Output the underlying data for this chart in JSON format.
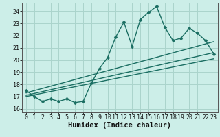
{
  "xlabel": "Humidex (Indice chaleur)",
  "bg_color": "#cceee8",
  "grid_color": "#aad4cc",
  "line_color": "#1a6e62",
  "xlim": [
    -0.5,
    23.5
  ],
  "ylim": [
    15.7,
    24.7
  ],
  "xticks": [
    0,
    1,
    2,
    3,
    4,
    5,
    6,
    7,
    8,
    9,
    10,
    11,
    12,
    13,
    14,
    15,
    16,
    17,
    18,
    19,
    20,
    21,
    22,
    23
  ],
  "yticks": [
    16,
    17,
    18,
    19,
    20,
    21,
    22,
    23,
    24
  ],
  "main_x": [
    0,
    1,
    2,
    3,
    4,
    5,
    6,
    7,
    8,
    9,
    10,
    11,
    12,
    13,
    14,
    15,
    16,
    17,
    18,
    19,
    20,
    21,
    22,
    23
  ],
  "main_y": [
    17.5,
    17.0,
    16.6,
    16.8,
    16.6,
    16.8,
    16.5,
    16.6,
    18.1,
    19.3,
    20.2,
    21.9,
    23.1,
    21.1,
    23.3,
    23.9,
    24.4,
    22.7,
    21.6,
    21.8,
    22.6,
    22.2,
    21.6,
    20.5
  ],
  "line1_x": [
    0,
    23
  ],
  "line1_y": [
    17.3,
    21.5
  ],
  "line2_x": [
    0,
    23
  ],
  "line2_y": [
    17.1,
    20.6
  ],
  "line3_x": [
    0,
    23
  ],
  "line3_y": [
    17.0,
    20.1
  ],
  "marker_size": 2.5,
  "line_width": 1.0,
  "font_size_tick": 6,
  "font_size_label": 7.5
}
